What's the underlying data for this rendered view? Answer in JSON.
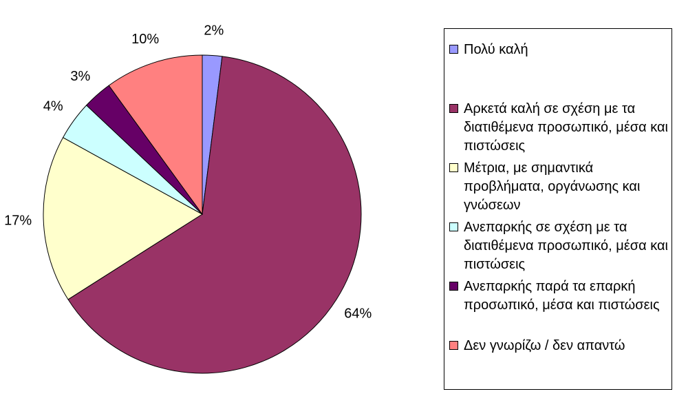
{
  "chart_data": {
    "type": "pie",
    "start_angle_deg": 0,
    "direction": "clockwise",
    "legend_position": "right",
    "slices": [
      {
        "label": "Πολύ καλή",
        "value": 2,
        "value_label": "2%",
        "color": "#9999ff"
      },
      {
        "label": "Αρκετά καλή σε σχέση με τα διατιθέμενα προσωπικό, μέσα και πιστώσεις",
        "value": 64,
        "value_label": "64%",
        "color": "#993366"
      },
      {
        "label": "Μέτρια, με σημαντικά προβλήματα, οργάνωσης και γνώσεων",
        "value": 17,
        "value_label": "17%",
        "color": "#ffffcc"
      },
      {
        "label": "Ανεπαρκής σε σχέση με τα διατιθέμενα προσωπικό, μέσα και πιστώσεις",
        "value": 4,
        "value_label": "4%",
        "color": "#ccffff"
      },
      {
        "label": "Ανεπαρκής παρά τα επαρκή προσωπικό, μέσα και πιστώσεις",
        "value": 3,
        "value_label": "3%",
        "color": "#660066"
      },
      {
        "label": "Δεν γνωρίζω / δεν απαντώ",
        "value": 10,
        "value_label": "10%",
        "color": "#ff8080"
      }
    ]
  }
}
